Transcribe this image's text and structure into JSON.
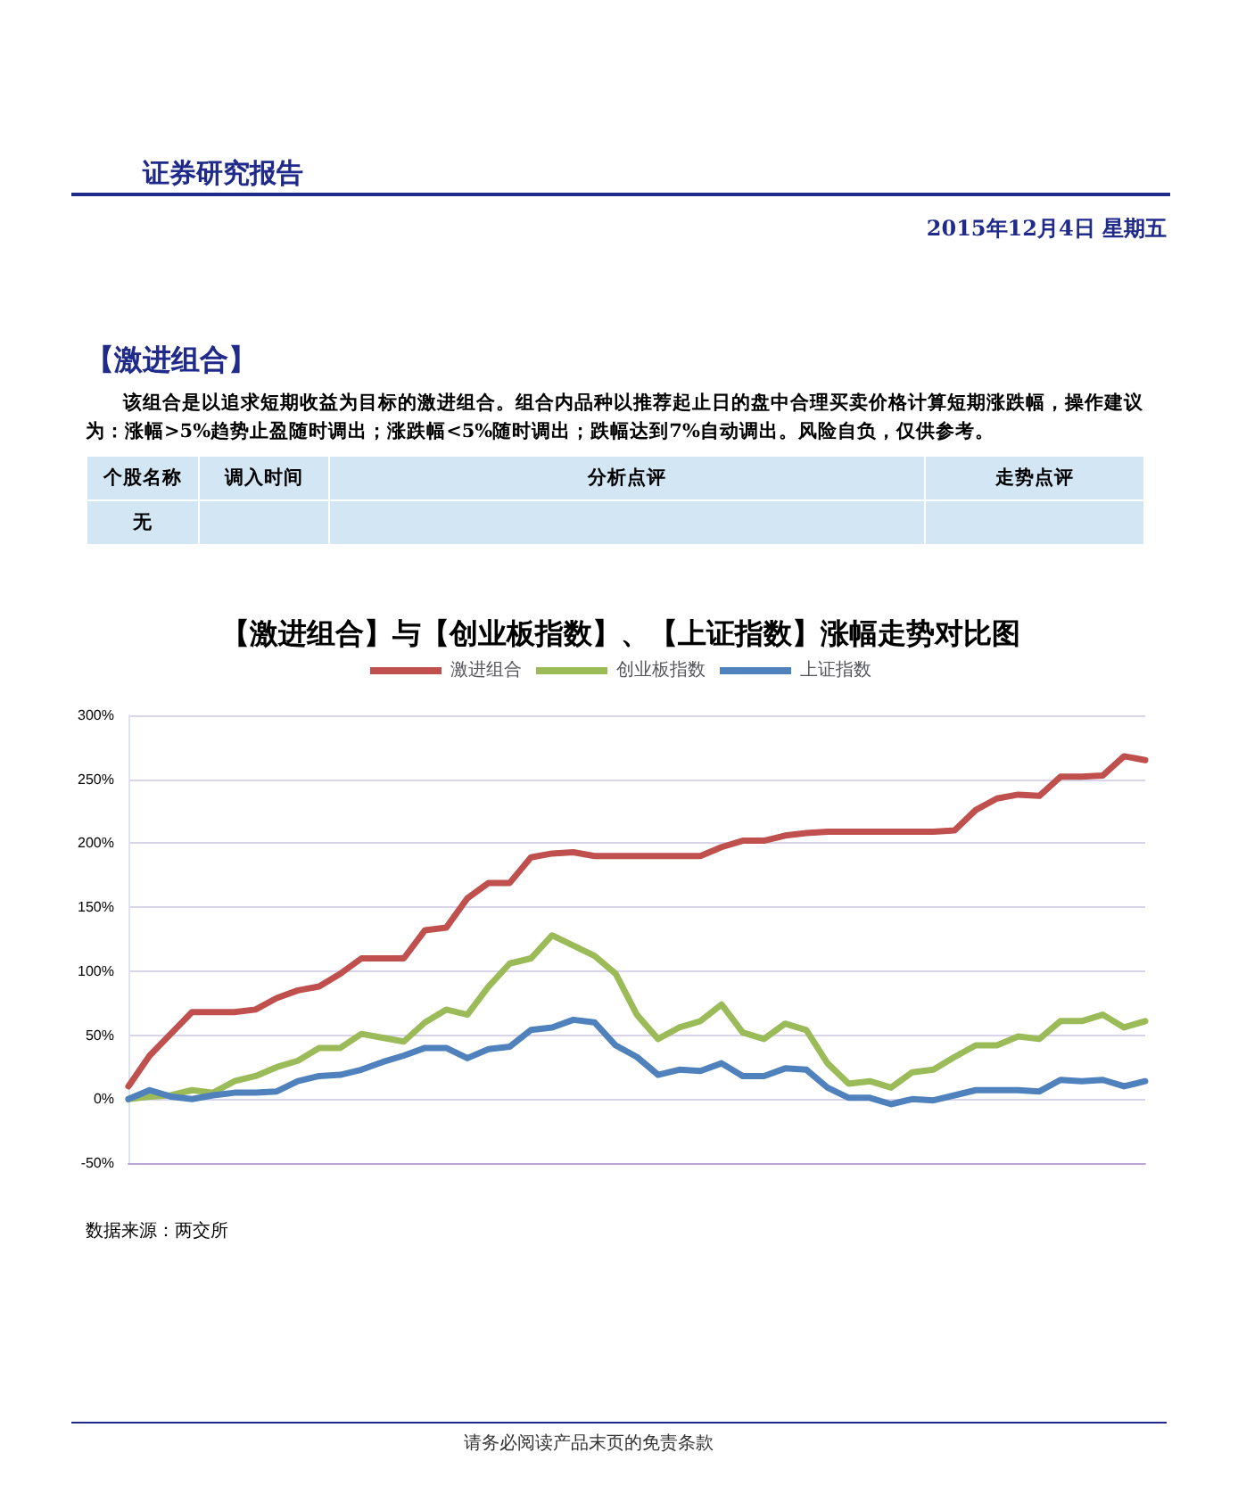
{
  "chart_data": {
    "type": "line",
    "title": "【激进组合】与【创业板指数】、【上证指数】涨幅走势对比图",
    "annotations": [
      "证券研究报告",
      "2015年12月4日  星期五",
      "【激进组合】",
      "该组合是以追求短期收益为目标的激进组合。组合内品种以推荐起止日的盘中合理买卖价格计算短期涨跌幅，操作建议为：涨幅>5%趋势止盈随时调出；涨跌幅<5%随时调出；跌幅达到7%自动调出。风险自负，仅供参考。",
      "个股名称",
      "调入时间",
      "分析点评",
      "走势点评",
      "无",
      "数据来源：两交所",
      "请务必阅读产品末页的免责条款"
    ],
    "categories": [
      null,
      null,
      null,
      null,
      null,
      null,
      null,
      null,
      null,
      null,
      null,
      null,
      null,
      null,
      null,
      null,
      null,
      null,
      null,
      null,
      null,
      null,
      null,
      null,
      null,
      null,
      null,
      null,
      null,
      null,
      null,
      null,
      null,
      null,
      null,
      null,
      null,
      null,
      null,
      null,
      null,
      null,
      null,
      null,
      null,
      null,
      null,
      null,
      null
    ],
    "series": [
      {
        "name": "激进组合",
        "color": "#c0504d",
        "values": [
          10,
          34,
          51,
          68,
          68,
          68,
          70,
          79,
          85,
          88,
          98,
          110,
          110,
          110,
          132,
          134,
          157,
          169,
          169,
          189,
          192,
          193,
          190,
          190,
          190,
          190,
          190,
          190,
          197,
          202,
          202,
          206,
          208,
          209,
          209,
          209,
          209,
          209,
          209,
          210,
          226,
          235,
          238,
          237,
          252,
          252,
          253,
          268,
          265
        ]
      },
      {
        "name": "创业板指数",
        "color": "#9bbb59",
        "values": [
          0,
          2,
          3,
          7,
          5,
          14,
          18,
          25,
          30,
          40,
          40,
          51,
          48,
          45,
          60,
          70,
          66,
          88,
          106,
          110,
          128,
          120,
          112,
          98,
          66,
          47,
          56,
          61,
          74,
          52,
          47,
          59,
          54,
          28,
          12,
          14,
          9,
          21,
          23,
          33,
          42,
          42,
          49,
          47,
          61,
          61,
          66,
          56,
          61
        ]
      },
      {
        "name": "上证指数",
        "color": "#4f81bd",
        "values": [
          0,
          7,
          2,
          0,
          3,
          5,
          5,
          6,
          14,
          18,
          19,
          23,
          29,
          34,
          40,
          40,
          32,
          39,
          41,
          54,
          56,
          62,
          60,
          42,
          33,
          19,
          23,
          22,
          28,
          18,
          18,
          24,
          23,
          9,
          1,
          1,
          -4,
          0,
          -1,
          3,
          7,
          7,
          7,
          6,
          15,
          14,
          15,
          10,
          14
        ]
      }
    ],
    "ylim": [
      -50,
      300
    ],
    "yticks": [
      {
        "value": -50,
        "label": "-50%"
      },
      {
        "value": 0,
        "label": "0%"
      },
      {
        "value": 50,
        "label": "50%"
      },
      {
        "value": 100,
        "label": "100%"
      },
      {
        "value": 150,
        "label": "150%"
      },
      {
        "value": 200,
        "label": "200%"
      },
      {
        "value": 250,
        "label": "250%"
      },
      {
        "value": 300,
        "label": "300%"
      }
    ],
    "grid": "y",
    "legend": "top",
    "marker": "none",
    "line_style": "solid"
  }
}
